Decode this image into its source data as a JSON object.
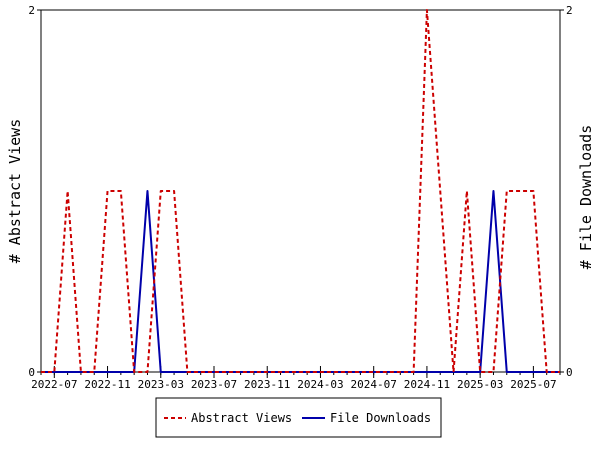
{
  "chart_data": {
    "type": "line",
    "title": "",
    "ylabel_left": "# Abstract Views",
    "ylabel_right": "# File Downloads",
    "ylim_left": [
      0,
      2
    ],
    "ylim_right": [
      0,
      2
    ],
    "y_ticks_left": [
      "0",
      "2"
    ],
    "y_ticks_right": [
      "0",
      "2"
    ],
    "x_range": [
      "2022-06",
      "2025-09"
    ],
    "x_ticks": [
      "2022-07",
      "2022-11",
      "2023-03",
      "2023-07",
      "2023-11",
      "2024-03",
      "2024-07",
      "2024-11",
      "2025-03",
      "2025-07"
    ],
    "grid": false,
    "legend_position": "bottom",
    "series": [
      {
        "name": "Abstract Views",
        "axis": "left",
        "color": "#cc0000",
        "style": "dashed",
        "x": [
          "2022-06",
          "2022-07",
          "2022-08",
          "2022-09",
          "2022-10",
          "2022-11",
          "2022-12",
          "2023-01",
          "2023-02",
          "2023-03",
          "2023-04",
          "2023-05",
          "2023-06",
          "2023-07",
          "2023-08",
          "2023-09",
          "2023-10",
          "2023-11",
          "2023-12",
          "2024-01",
          "2024-02",
          "2024-03",
          "2024-04",
          "2024-05",
          "2024-06",
          "2024-07",
          "2024-08",
          "2024-09",
          "2024-10",
          "2024-11",
          "2024-12",
          "2025-01",
          "2025-02",
          "2025-03",
          "2025-04",
          "2025-05",
          "2025-06",
          "2025-07",
          "2025-08",
          "2025-09"
        ],
        "values": [
          0,
          0,
          1,
          0,
          0,
          1,
          1,
          0,
          0,
          1,
          1,
          0,
          0,
          0,
          0,
          0,
          0,
          0,
          0,
          0,
          0,
          0,
          0,
          0,
          0,
          0,
          0,
          0,
          0,
          2,
          1,
          0,
          1,
          0,
          0,
          1,
          1,
          1,
          0,
          0
        ]
      },
      {
        "name": "File Downloads",
        "axis": "right",
        "color": "#0000aa",
        "style": "solid",
        "x": [
          "2022-06",
          "2022-07",
          "2022-08",
          "2022-09",
          "2022-10",
          "2022-11",
          "2022-12",
          "2023-01",
          "2023-02",
          "2023-03",
          "2023-04",
          "2023-05",
          "2023-06",
          "2023-07",
          "2023-08",
          "2023-09",
          "2023-10",
          "2023-11",
          "2023-12",
          "2024-01",
          "2024-02",
          "2024-03",
          "2024-04",
          "2024-05",
          "2024-06",
          "2024-07",
          "2024-08",
          "2024-09",
          "2024-10",
          "2024-11",
          "2024-12",
          "2025-01",
          "2025-02",
          "2025-03",
          "2025-04",
          "2025-05",
          "2025-06",
          "2025-07",
          "2025-08",
          "2025-09"
        ],
        "values": [
          0,
          0,
          0,
          0,
          0,
          0,
          0,
          0,
          1,
          0,
          0,
          0,
          0,
          0,
          0,
          0,
          0,
          0,
          0,
          0,
          0,
          0,
          0,
          0,
          0,
          0,
          0,
          0,
          0,
          0,
          0,
          0,
          0,
          0,
          1,
          0,
          0,
          0,
          0,
          0
        ]
      }
    ]
  }
}
